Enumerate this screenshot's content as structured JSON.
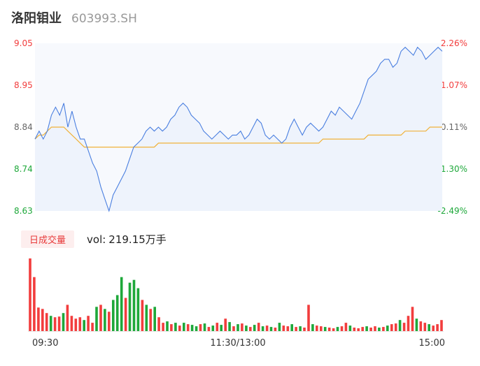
{
  "header": {
    "name": "洛阳钼业",
    "code": "603993.SH"
  },
  "volume_panel": {
    "tab_label": "日成交量",
    "vol_label": "vol:",
    "vol_value": "219.15万手"
  },
  "colors": {
    "up": "#f23d3d",
    "down": "#1ea83a",
    "price_line": "#4a7fe0",
    "avg_line": "#f0b239",
    "neutral": "#666666"
  },
  "chart_data": [
    {
      "type": "line",
      "title": "",
      "xlabel": "",
      "ylabel": "",
      "ylim": [
        8.63,
        9.05
      ],
      "y_ticks": [
        "9.05",
        "8.95",
        "8.84",
        "8.74",
        "8.63"
      ],
      "pct_ticks": [
        "2.26%",
        "1.07%",
        "-0.11%",
        "-1.30%",
        "-2.49%"
      ],
      "x_tick_labels": [
        "09:30",
        "11:30/13:00",
        "15:00"
      ],
      "series": [
        {
          "key": "price",
          "values": [
            8.81,
            8.83,
            8.81,
            8.83,
            8.87,
            8.89,
            8.87,
            8.9,
            8.84,
            8.88,
            8.84,
            8.81,
            8.81,
            8.78,
            8.75,
            8.73,
            8.69,
            8.66,
            8.63,
            8.67,
            8.69,
            8.71,
            8.73,
            8.76,
            8.79,
            8.8,
            8.81,
            8.83,
            8.84,
            8.83,
            8.84,
            8.83,
            8.84,
            8.86,
            8.87,
            8.89,
            8.9,
            8.89,
            8.87,
            8.86,
            8.85,
            8.83,
            8.82,
            8.81,
            8.82,
            8.83,
            8.82,
            8.81,
            8.82,
            8.82,
            8.83,
            8.81,
            8.82,
            8.84,
            8.86,
            8.85,
            8.82,
            8.81,
            8.82,
            8.81,
            8.8,
            8.81,
            8.84,
            8.86,
            8.84,
            8.82,
            8.84,
            8.85,
            8.84,
            8.83,
            8.84,
            8.86,
            8.88,
            8.87,
            8.89,
            8.88,
            8.87,
            8.86,
            8.88,
            8.9,
            8.93,
            8.96,
            8.97,
            8.98,
            9.0,
            9.01,
            9.01,
            8.99,
            9.0,
            9.03,
            9.04,
            9.03,
            9.02,
            9.04,
            9.03,
            9.01,
            9.02,
            9.03,
            9.04,
            9.03
          ]
        },
        {
          "key": "average",
          "values": [
            8.81,
            8.82,
            8.82,
            8.83,
            8.84,
            8.84,
            8.84,
            8.84,
            8.83,
            8.82,
            8.81,
            8.8,
            8.79,
            8.79,
            8.79,
            8.79,
            8.79,
            8.79,
            8.79,
            8.79,
            8.79,
            8.79,
            8.79,
            8.79,
            8.79,
            8.79,
            8.79,
            8.79,
            8.79,
            8.79,
            8.8,
            8.8,
            8.8,
            8.8,
            8.8,
            8.8,
            8.8,
            8.8,
            8.8,
            8.8,
            8.8,
            8.8,
            8.8,
            8.8,
            8.8,
            8.8,
            8.8,
            8.8,
            8.8,
            8.8,
            8.8,
            8.8,
            8.8,
            8.8,
            8.8,
            8.8,
            8.8,
            8.8,
            8.8,
            8.8,
            8.8,
            8.8,
            8.8,
            8.8,
            8.8,
            8.8,
            8.8,
            8.8,
            8.8,
            8.8,
            8.81,
            8.81,
            8.81,
            8.81,
            8.81,
            8.81,
            8.81,
            8.81,
            8.81,
            8.81,
            8.81,
            8.82,
            8.82,
            8.82,
            8.82,
            8.82,
            8.82,
            8.82,
            8.82,
            8.82,
            8.83,
            8.83,
            8.83,
            8.83,
            8.83,
            8.83,
            8.84,
            8.84,
            8.84,
            8.84
          ]
        }
      ]
    },
    {
      "type": "bar",
      "title": "",
      "xlabel": "",
      "ylabel": "",
      "volumes": [
        105,
        78,
        34,
        32,
        26,
        22,
        20,
        21,
        26,
        38,
        22,
        18,
        20,
        16,
        22,
        12,
        35,
        38,
        32,
        28,
        45,
        52,
        78,
        48,
        70,
        74,
        62,
        45,
        38,
        32,
        35,
        20,
        12,
        14,
        10,
        12,
        8,
        12,
        10,
        9,
        7,
        10,
        11,
        6,
        8,
        12,
        9,
        18,
        13,
        7,
        10,
        11,
        8,
        6,
        9,
        12,
        7,
        8,
        6,
        5,
        12,
        8,
        7,
        10,
        6,
        7,
        5,
        38,
        10,
        8,
        7,
        6,
        5,
        4,
        6,
        7,
        12,
        8,
        5,
        4,
        6,
        7,
        5,
        7,
        5,
        6,
        8,
        10,
        11,
        16,
        12,
        22,
        35,
        18,
        14,
        12,
        10,
        8,
        10,
        16
      ],
      "colors": [
        "up",
        "up",
        "up",
        "up",
        "up",
        "down",
        "up",
        "up",
        "down",
        "up",
        "up",
        "up",
        "up",
        "down",
        "up",
        "up",
        "down",
        "up",
        "down",
        "up",
        "down",
        "down",
        "down",
        "up",
        "down",
        "down",
        "down",
        "up",
        "down",
        "up",
        "down",
        "up",
        "up",
        "down",
        "up",
        "down",
        "up",
        "down",
        "up",
        "down",
        "down",
        "up",
        "down",
        "up",
        "down",
        "up",
        "down",
        "up",
        "down",
        "up",
        "down",
        "up",
        "down",
        "up",
        "down",
        "up",
        "down",
        "up",
        "down",
        "up",
        "down",
        "up",
        "up",
        "down",
        "up",
        "down",
        "up",
        "up",
        "down",
        "up",
        "up",
        "down",
        "up",
        "up",
        "down",
        "up",
        "up",
        "down",
        "up",
        "up",
        "up",
        "down",
        "up",
        "up",
        "down",
        "up",
        "down",
        "up",
        "up",
        "down",
        "up",
        "up",
        "up",
        "down",
        "up",
        "up",
        "down",
        "up",
        "up",
        "up"
      ]
    }
  ]
}
